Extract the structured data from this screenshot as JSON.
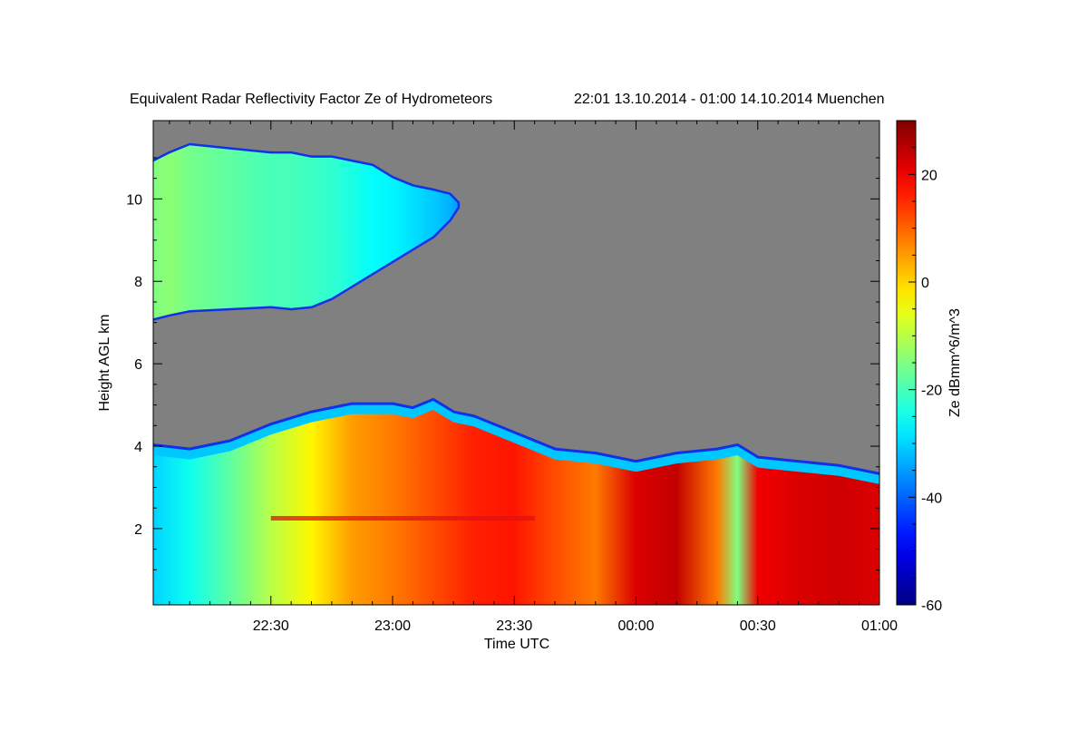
{
  "chart_data": {
    "type": "heatmap",
    "title": "Equivalent Radar Reflectivity Factor Ze of Hydrometeors",
    "subtitle": "22:01 13.10.2014 - 01:00 14.10.2014 Muenchen",
    "xlabel": "Time UTC",
    "ylabel": "Height AGL km",
    "x_unit": "minutes after 22:00 UTC",
    "xlim": [
      1,
      180
    ],
    "ylim": [
      0.15,
      11.9
    ],
    "x_ticks": [
      {
        "value": 30,
        "label": "22:30"
      },
      {
        "value": 60,
        "label": "23:00"
      },
      {
        "value": 90,
        "label": "23:30"
      },
      {
        "value": 120,
        "label": "00:00"
      },
      {
        "value": 150,
        "label": "00:30"
      },
      {
        "value": 180,
        "label": "01:00"
      }
    ],
    "y_ticks": [
      {
        "value": 2,
        "label": "2"
      },
      {
        "value": 4,
        "label": "4"
      },
      {
        "value": 6,
        "label": "6"
      },
      {
        "value": 8,
        "label": "8"
      },
      {
        "value": 10,
        "label": "10"
      }
    ],
    "colorbar": {
      "label": "Ze dBmm^6/m^3",
      "range": [
        -60,
        30
      ],
      "ticks": [
        {
          "value": 20,
          "label": "20"
        },
        {
          "value": 0,
          "label": "0"
        },
        {
          "value": -20,
          "label": "-20"
        },
        {
          "value": -40,
          "label": "-40"
        },
        {
          "value": -60,
          "label": "-60"
        }
      ],
      "colormap": "jet"
    },
    "no_data_color": "#808080",
    "upper_cloud_layer": {
      "x": [
        1,
        5,
        10,
        20,
        30,
        35,
        40,
        45,
        50,
        55,
        60,
        65,
        70,
        74,
        76
      ],
      "top_km": [
        10.9,
        11.1,
        11.3,
        11.2,
        11.1,
        11.1,
        11.0,
        11.0,
        10.9,
        10.8,
        10.5,
        10.3,
        10.2,
        10.1,
        9.9
      ],
      "bottom_km": [
        7.1,
        7.2,
        7.3,
        7.35,
        7.4,
        7.35,
        7.4,
        7.6,
        7.9,
        8.2,
        8.5,
        8.8,
        9.1,
        9.5,
        9.8
      ],
      "ze_dbz": [
        -15,
        -14,
        -16,
        -18,
        -20,
        -20,
        -21,
        -22,
        -24,
        -26,
        -27,
        -29,
        -31,
        -33,
        -35
      ]
    },
    "lower_cloud_layer": {
      "x": [
        1,
        10,
        20,
        30,
        40,
        50,
        60,
        65,
        70,
        75,
        80,
        90,
        100,
        110,
        120,
        130,
        140,
        145,
        150,
        160,
        170,
        180
      ],
      "top_km": [
        4.0,
        3.9,
        4.1,
        4.5,
        4.8,
        5.0,
        5.0,
        4.9,
        5.1,
        4.8,
        4.7,
        4.3,
        3.9,
        3.8,
        3.6,
        3.8,
        3.9,
        4.0,
        3.7,
        3.6,
        3.5,
        3.3
      ],
      "ze_dbz": [
        -30,
        -25,
        -18,
        -10,
        -3,
        5,
        8,
        10,
        12,
        14,
        16,
        17,
        12,
        8,
        22,
        24,
        8,
        -15,
        20,
        22,
        23,
        22
      ]
    },
    "bright_band_height_km": 2.25,
    "grid": false,
    "legend": "colorbar-right"
  }
}
